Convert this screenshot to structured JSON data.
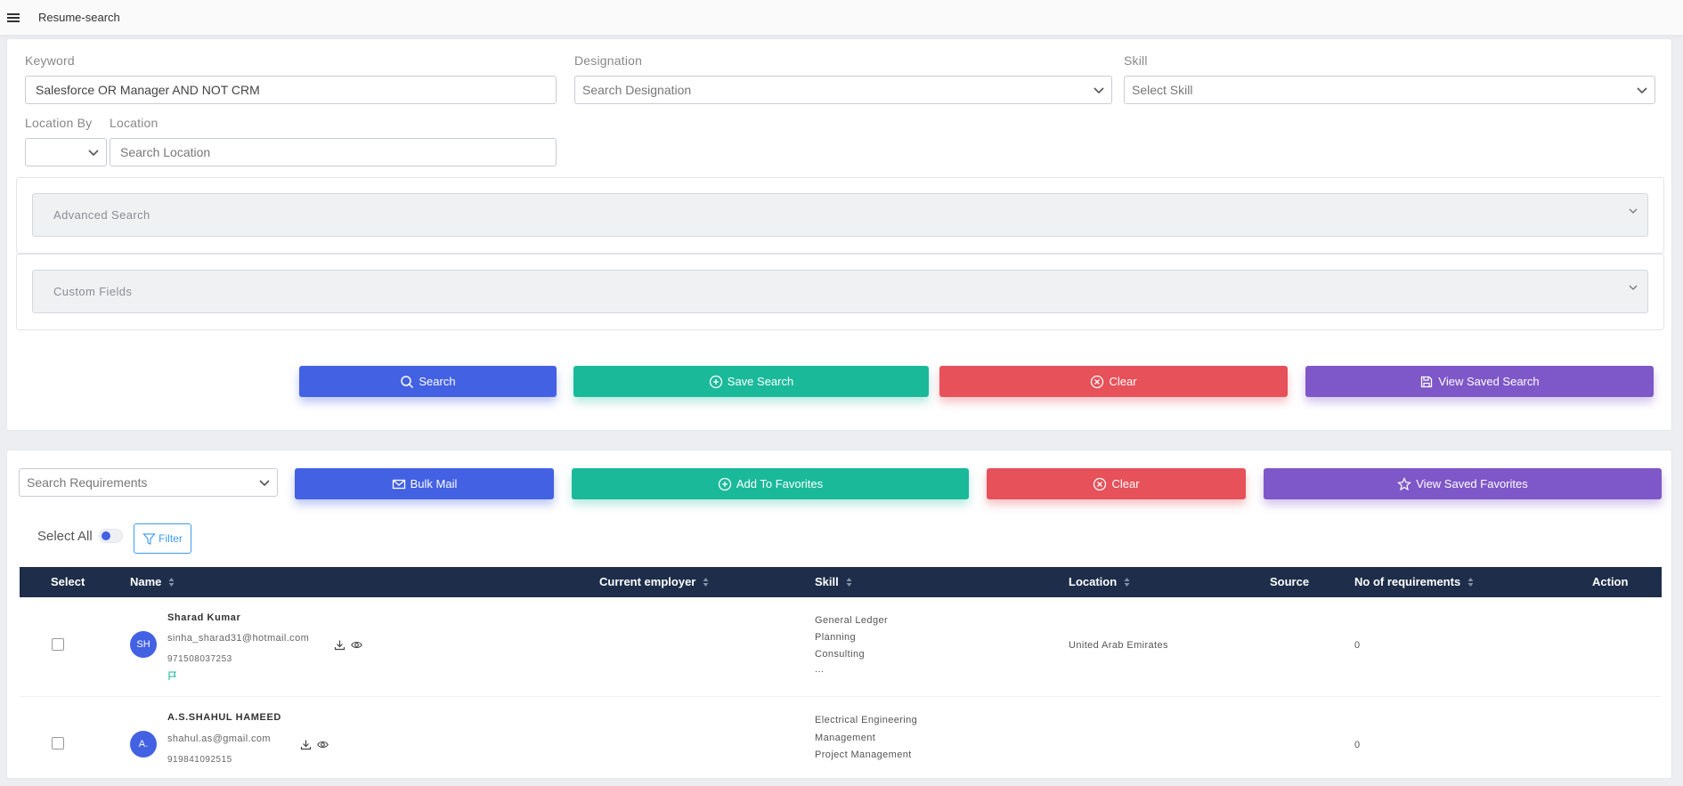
{
  "header": {
    "title": "Resume-search",
    "menu_icon": "hamburger-icon"
  },
  "search_form": {
    "keyword_label": "Keyword",
    "keyword_value": "Salesforce OR Manager AND NOT CRM",
    "designation_label": "Designation",
    "designation_placeholder": "Search Designation",
    "skill_label": "Skill",
    "skill_placeholder": "Select Skill",
    "location_by_label": "Location By",
    "location_by_value": "",
    "location_label": "Location",
    "location_placeholder": "Search Location",
    "advanced_search": "Advanced Search",
    "custom_fields": "Custom Fields"
  },
  "actions": {
    "search": "Search",
    "save_search": "Save Search",
    "clear": "Clear",
    "view_saved_search": "View Saved Search"
  },
  "results_toolbar": {
    "requirements_placeholder": "Search Requirements",
    "bulk_mail": "Bulk Mail",
    "add_to_favorites": "Add To Favorites",
    "clear": "Clear",
    "view_saved_favorites": "View Saved Favorites",
    "select_all": "Select All",
    "filter": "Filter"
  },
  "table": {
    "columns": [
      "Select",
      "Name",
      "Current employer",
      "Skill",
      "Location",
      "Source",
      "No of requirements",
      "Action"
    ],
    "rows": [
      {
        "initials": "SH",
        "name": "Sharad Kumar",
        "email": "sinha_sharad31@hotmail.com",
        "phone": "971508037253",
        "skills": [
          "General Ledger",
          "Planning",
          "Consulting",
          "..."
        ],
        "location": "United Arab Emirates",
        "requirements": "0"
      },
      {
        "initials": "A.",
        "name": "A.S.SHAHUL HAMEED",
        "email": "shahul.as@gmail.com",
        "phone": "919841092515",
        "skills": [
          "Electrical Engineering",
          "Management",
          "Project Management"
        ],
        "location": "",
        "requirements": "0"
      }
    ]
  },
  "colors": {
    "primary": "#4361e3",
    "success": "#1ab99a",
    "danger": "#e6515a",
    "purple": "#7e57c8",
    "table_header": "#1d2d4a"
  }
}
